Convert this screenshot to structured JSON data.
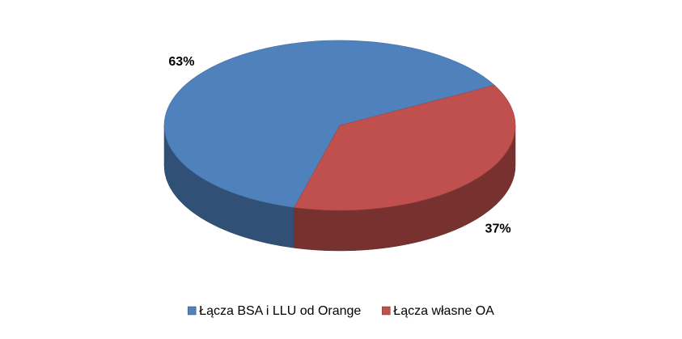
{
  "chart_data": {
    "type": "pie",
    "categories": [
      "Łącza BSA i LLU od Orange",
      "Łącza własne OA"
    ],
    "values": [
      63,
      37
    ],
    "value_labels": [
      "63%",
      "37%"
    ],
    "colors": [
      "#4f81bd",
      "#c0504d"
    ],
    "legend": "bottom"
  }
}
